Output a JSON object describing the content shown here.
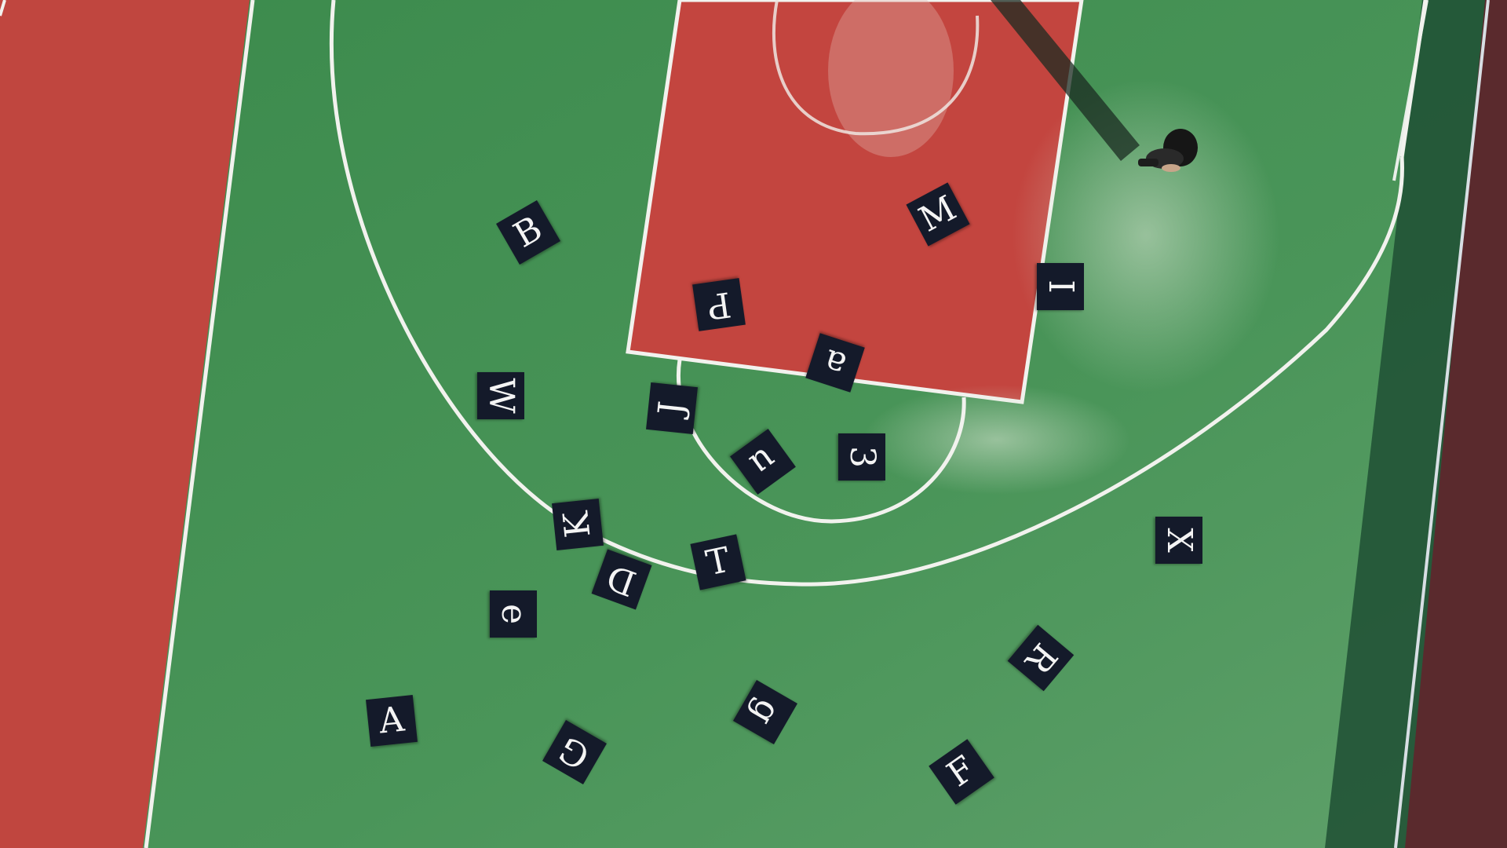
{
  "scene": {
    "description_colors": {
      "court_green": "#3f8a4f",
      "court_red": "#c0463f",
      "line_white": "#f2f2ee",
      "tile_navy": "#141a2a"
    }
  },
  "tiles": [
    {
      "id": "B",
      "char": "B"
    },
    {
      "id": "M",
      "char": "M"
    },
    {
      "id": "P",
      "char": "P"
    },
    {
      "id": "I",
      "char": "I"
    },
    {
      "id": "a",
      "char": "a"
    },
    {
      "id": "W",
      "char": "W"
    },
    {
      "id": "J",
      "char": "J"
    },
    {
      "id": "u",
      "char": "u"
    },
    {
      "id": "3",
      "char": "3"
    },
    {
      "id": "K",
      "char": "K"
    },
    {
      "id": "X",
      "char": "X"
    },
    {
      "id": "D",
      "char": "D"
    },
    {
      "id": "T",
      "char": "T"
    },
    {
      "id": "e",
      "char": "e"
    },
    {
      "id": "R",
      "char": "R"
    },
    {
      "id": "A",
      "char": "A"
    },
    {
      "id": "g",
      "char": "g"
    },
    {
      "id": "G",
      "char": "G"
    },
    {
      "id": "F",
      "char": "F"
    }
  ]
}
